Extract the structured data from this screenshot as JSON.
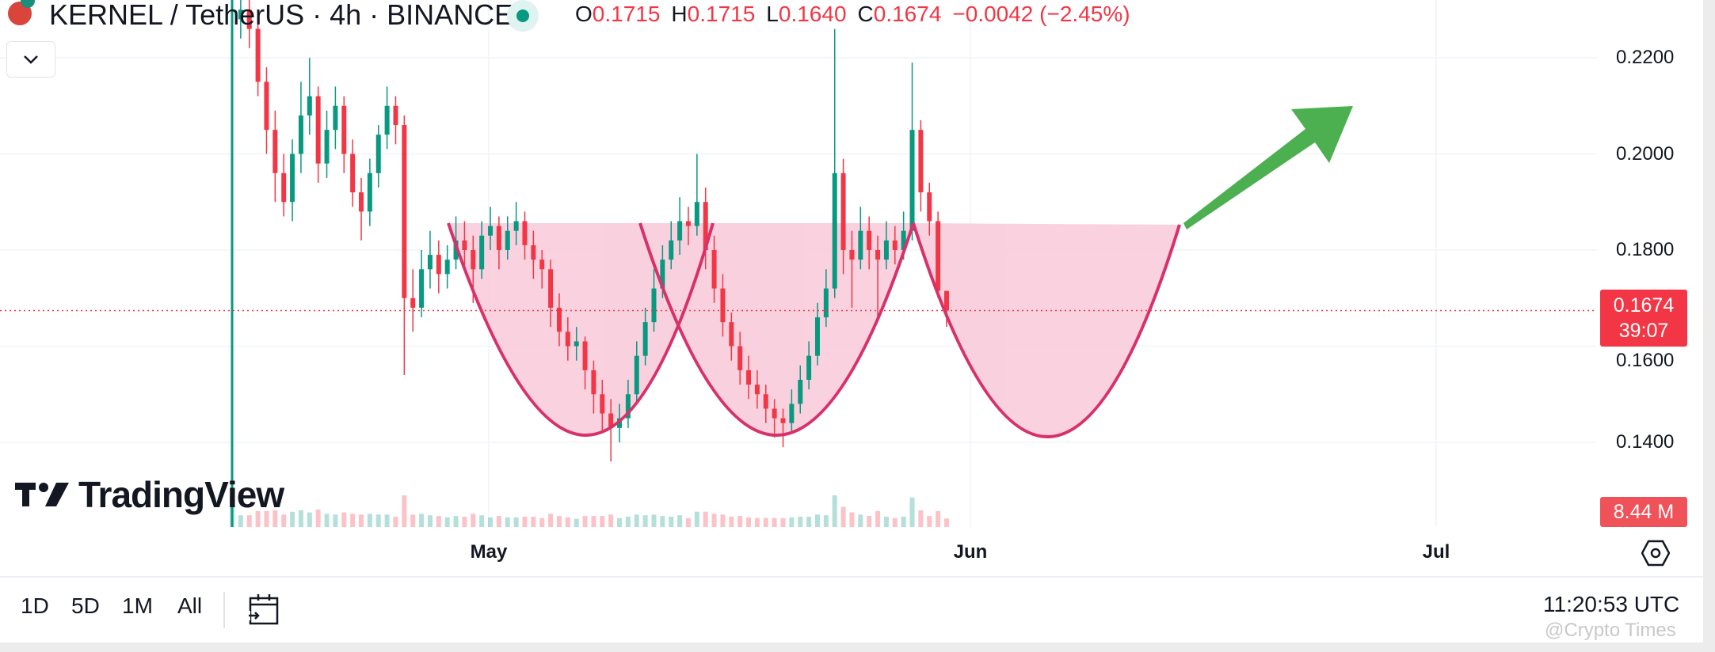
{
  "header": {
    "symbol_title": "KERNEL / TetherUS · 4h · BINANCE",
    "ohlc": {
      "o_label": "O",
      "o": "0.1715",
      "h_label": "H",
      "h": "0.1715",
      "l_label": "L",
      "l": "0.1640",
      "c_label": "C",
      "c": "0.1674",
      "change": "−0.0042 (−2.45%)"
    }
  },
  "price_axis": {
    "ticks": [
      "0.2200",
      "0.2000",
      "0.1800",
      "0.1600",
      "0.1400"
    ],
    "current_price": "0.1674",
    "countdown": "39:07",
    "volume_label": "8.44 M"
  },
  "time_axis": {
    "ticks": [
      "May",
      "Jun",
      "Jul"
    ]
  },
  "bottom_bar": {
    "ranges": [
      "1D",
      "5D",
      "1M",
      "All"
    ],
    "clock": "11:20:53 UTC"
  },
  "branding": {
    "logo_text": "TradingView"
  },
  "watermark": "@Crypto Times",
  "colors": {
    "up": "#089981",
    "down": "#f23645",
    "pattern_fill": "#f9c9d9",
    "pattern_stroke": "#d8316a",
    "arrow": "#4caf50",
    "grid": "#f0f3fa"
  },
  "chart_data": {
    "type": "candlestick",
    "symbol": "KERNEL / TetherUS",
    "interval": "4h",
    "ylim": [
      0.13,
      0.232
    ],
    "y_ticks": [
      0.22,
      0.2,
      0.18,
      0.16,
      0.14
    ],
    "x_ticks": [
      "May",
      "Jun",
      "Jul"
    ],
    "grid": true,
    "last_price": 0.1674,
    "candles_ohlc": [
      [
        0.135,
        0.24,
        0.125,
        0.228
      ],
      [
        0.228,
        0.236,
        0.224,
        0.23
      ],
      [
        0.23,
        0.234,
        0.222,
        0.226
      ],
      [
        0.226,
        0.23,
        0.212,
        0.215
      ],
      [
        0.215,
        0.218,
        0.2,
        0.205
      ],
      [
        0.205,
        0.209,
        0.19,
        0.196
      ],
      [
        0.196,
        0.2,
        0.187,
        0.19
      ],
      [
        0.19,
        0.203,
        0.186,
        0.2
      ],
      [
        0.2,
        0.215,
        0.196,
        0.208
      ],
      [
        0.208,
        0.22,
        0.204,
        0.212
      ],
      [
        0.212,
        0.214,
        0.194,
        0.198
      ],
      [
        0.198,
        0.209,
        0.195,
        0.205
      ],
      [
        0.205,
        0.214,
        0.201,
        0.21
      ],
      [
        0.21,
        0.212,
        0.196,
        0.2
      ],
      [
        0.2,
        0.203,
        0.189,
        0.192
      ],
      [
        0.192,
        0.195,
        0.182,
        0.188
      ],
      [
        0.188,
        0.199,
        0.185,
        0.196
      ],
      [
        0.196,
        0.206,
        0.193,
        0.204
      ],
      [
        0.204,
        0.214,
        0.201,
        0.21
      ],
      [
        0.21,
        0.212,
        0.202,
        0.206
      ],
      [
        0.206,
        0.208,
        0.154,
        0.17
      ],
      [
        0.17,
        0.176,
        0.163,
        0.168
      ],
      [
        0.168,
        0.18,
        0.166,
        0.176
      ],
      [
        0.176,
        0.184,
        0.172,
        0.179
      ],
      [
        0.179,
        0.182,
        0.171,
        0.175
      ],
      [
        0.175,
        0.181,
        0.172,
        0.178
      ],
      [
        0.178,
        0.187,
        0.176,
        0.182
      ],
      [
        0.182,
        0.186,
        0.176,
        0.18
      ],
      [
        0.18,
        0.183,
        0.169,
        0.176
      ],
      [
        0.176,
        0.186,
        0.174,
        0.183
      ],
      [
        0.183,
        0.189,
        0.18,
        0.185
      ],
      [
        0.185,
        0.187,
        0.176,
        0.18
      ],
      [
        0.18,
        0.187,
        0.178,
        0.184
      ],
      [
        0.184,
        0.19,
        0.181,
        0.186
      ],
      [
        0.186,
        0.188,
        0.178,
        0.181
      ],
      [
        0.181,
        0.184,
        0.174,
        0.178
      ],
      [
        0.178,
        0.18,
        0.172,
        0.176
      ],
      [
        0.176,
        0.178,
        0.164,
        0.168
      ],
      [
        0.168,
        0.171,
        0.16,
        0.163
      ],
      [
        0.163,
        0.166,
        0.157,
        0.16
      ],
      [
        0.16,
        0.164,
        0.157,
        0.161
      ],
      [
        0.161,
        0.162,
        0.151,
        0.155
      ],
      [
        0.155,
        0.157,
        0.146,
        0.15
      ],
      [
        0.15,
        0.153,
        0.142,
        0.146
      ],
      [
        0.146,
        0.149,
        0.136,
        0.143
      ],
      [
        0.143,
        0.148,
        0.14,
        0.145
      ],
      [
        0.145,
        0.153,
        0.143,
        0.15
      ],
      [
        0.15,
        0.161,
        0.148,
        0.158
      ],
      [
        0.158,
        0.168,
        0.156,
        0.165
      ],
      [
        0.165,
        0.176,
        0.163,
        0.172
      ],
      [
        0.172,
        0.181,
        0.17,
        0.178
      ],
      [
        0.178,
        0.186,
        0.176,
        0.182
      ],
      [
        0.182,
        0.191,
        0.179,
        0.186
      ],
      [
        0.186,
        0.189,
        0.181,
        0.185
      ],
      [
        0.185,
        0.2,
        0.183,
        0.19
      ],
      [
        0.19,
        0.193,
        0.176,
        0.18
      ],
      [
        0.18,
        0.183,
        0.169,
        0.172
      ],
      [
        0.172,
        0.175,
        0.162,
        0.165
      ],
      [
        0.165,
        0.167,
        0.157,
        0.16
      ],
      [
        0.16,
        0.163,
        0.152,
        0.155
      ],
      [
        0.155,
        0.158,
        0.149,
        0.152
      ],
      [
        0.152,
        0.155,
        0.147,
        0.15
      ],
      [
        0.15,
        0.152,
        0.144,
        0.147
      ],
      [
        0.147,
        0.149,
        0.141,
        0.145
      ],
      [
        0.145,
        0.147,
        0.139,
        0.144
      ],
      [
        0.144,
        0.151,
        0.142,
        0.148
      ],
      [
        0.148,
        0.156,
        0.146,
        0.153
      ],
      [
        0.153,
        0.161,
        0.151,
        0.158
      ],
      [
        0.158,
        0.169,
        0.156,
        0.166
      ],
      [
        0.166,
        0.176,
        0.164,
        0.172
      ],
      [
        0.172,
        0.226,
        0.17,
        0.196
      ],
      [
        0.196,
        0.199,
        0.175,
        0.18
      ],
      [
        0.18,
        0.184,
        0.168,
        0.178
      ],
      [
        0.178,
        0.189,
        0.176,
        0.184
      ],
      [
        0.184,
        0.187,
        0.176,
        0.18
      ],
      [
        0.18,
        0.183,
        0.165,
        0.178
      ],
      [
        0.178,
        0.186,
        0.176,
        0.182
      ],
      [
        0.182,
        0.185,
        0.177,
        0.18
      ],
      [
        0.18,
        0.188,
        0.178,
        0.184
      ],
      [
        0.184,
        0.219,
        0.182,
        0.205
      ],
      [
        0.205,
        0.207,
        0.188,
        0.192
      ],
      [
        0.192,
        0.194,
        0.183,
        0.186
      ],
      [
        0.186,
        0.188,
        0.17,
        0.1715
      ],
      [
        0.1715,
        0.1715,
        0.164,
        0.1674
      ]
    ],
    "annotations": [
      "triple cup pattern at ~0.185 neckline, bottoms ~0.141",
      "green arrow pointing up-right"
    ]
  }
}
